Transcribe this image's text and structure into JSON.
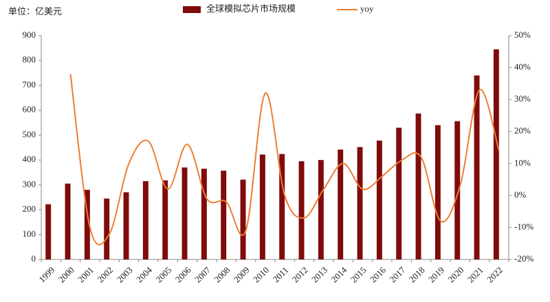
{
  "chart_data": {
    "type": "combo",
    "y_label": "单位：亿美元",
    "categories": [
      "1999",
      "2000",
      "2001",
      "2002",
      "2003",
      "2004",
      "2005",
      "2006",
      "2007",
      "2008",
      "2009",
      "2010",
      "2011",
      "2012",
      "2013",
      "2014",
      "2015",
      "2016",
      "2017",
      "2018",
      "2019",
      "2020",
      "2021",
      "2022"
    ],
    "series": [
      {
        "name": "全球模拟芯片市场规模",
        "type": "bar",
        "color": "#7f0b0b",
        "values": [
          222,
          305,
          280,
          245,
          270,
          315,
          318,
          370,
          365,
          357,
          321,
          422,
          424,
          395,
          400,
          442,
          452,
          478,
          530,
          587,
          540,
          556,
          740,
          845
        ]
      },
      {
        "name": "yoy",
        "type": "line",
        "axis": "y2",
        "color": "#ed7d31",
        "values": [
          null,
          38,
          -10,
          -12,
          10,
          17,
          2,
          16,
          -1,
          -2,
          -11,
          32,
          0,
          -7,
          2,
          10,
          2,
          6,
          11,
          12,
          -8,
          3,
          33,
          14
        ]
      }
    ],
    "ylim": [
      0,
      900
    ],
    "yticks": [
      0,
      100,
      200,
      300,
      400,
      500,
      600,
      700,
      800,
      900
    ],
    "y2lim": [
      -20,
      50
    ],
    "y2ticks": [
      {
        "value": -20,
        "label": "-20%"
      },
      {
        "value": -10,
        "label": "-10%"
      },
      {
        "value": 0,
        "label": "0%"
      },
      {
        "value": 10,
        "label": "10%"
      },
      {
        "value": 20,
        "label": "20%"
      },
      {
        "value": 30,
        "label": "30%"
      },
      {
        "value": 40,
        "label": "40%"
      },
      {
        "value": 50,
        "label": "50%"
      }
    ],
    "grid": false
  }
}
